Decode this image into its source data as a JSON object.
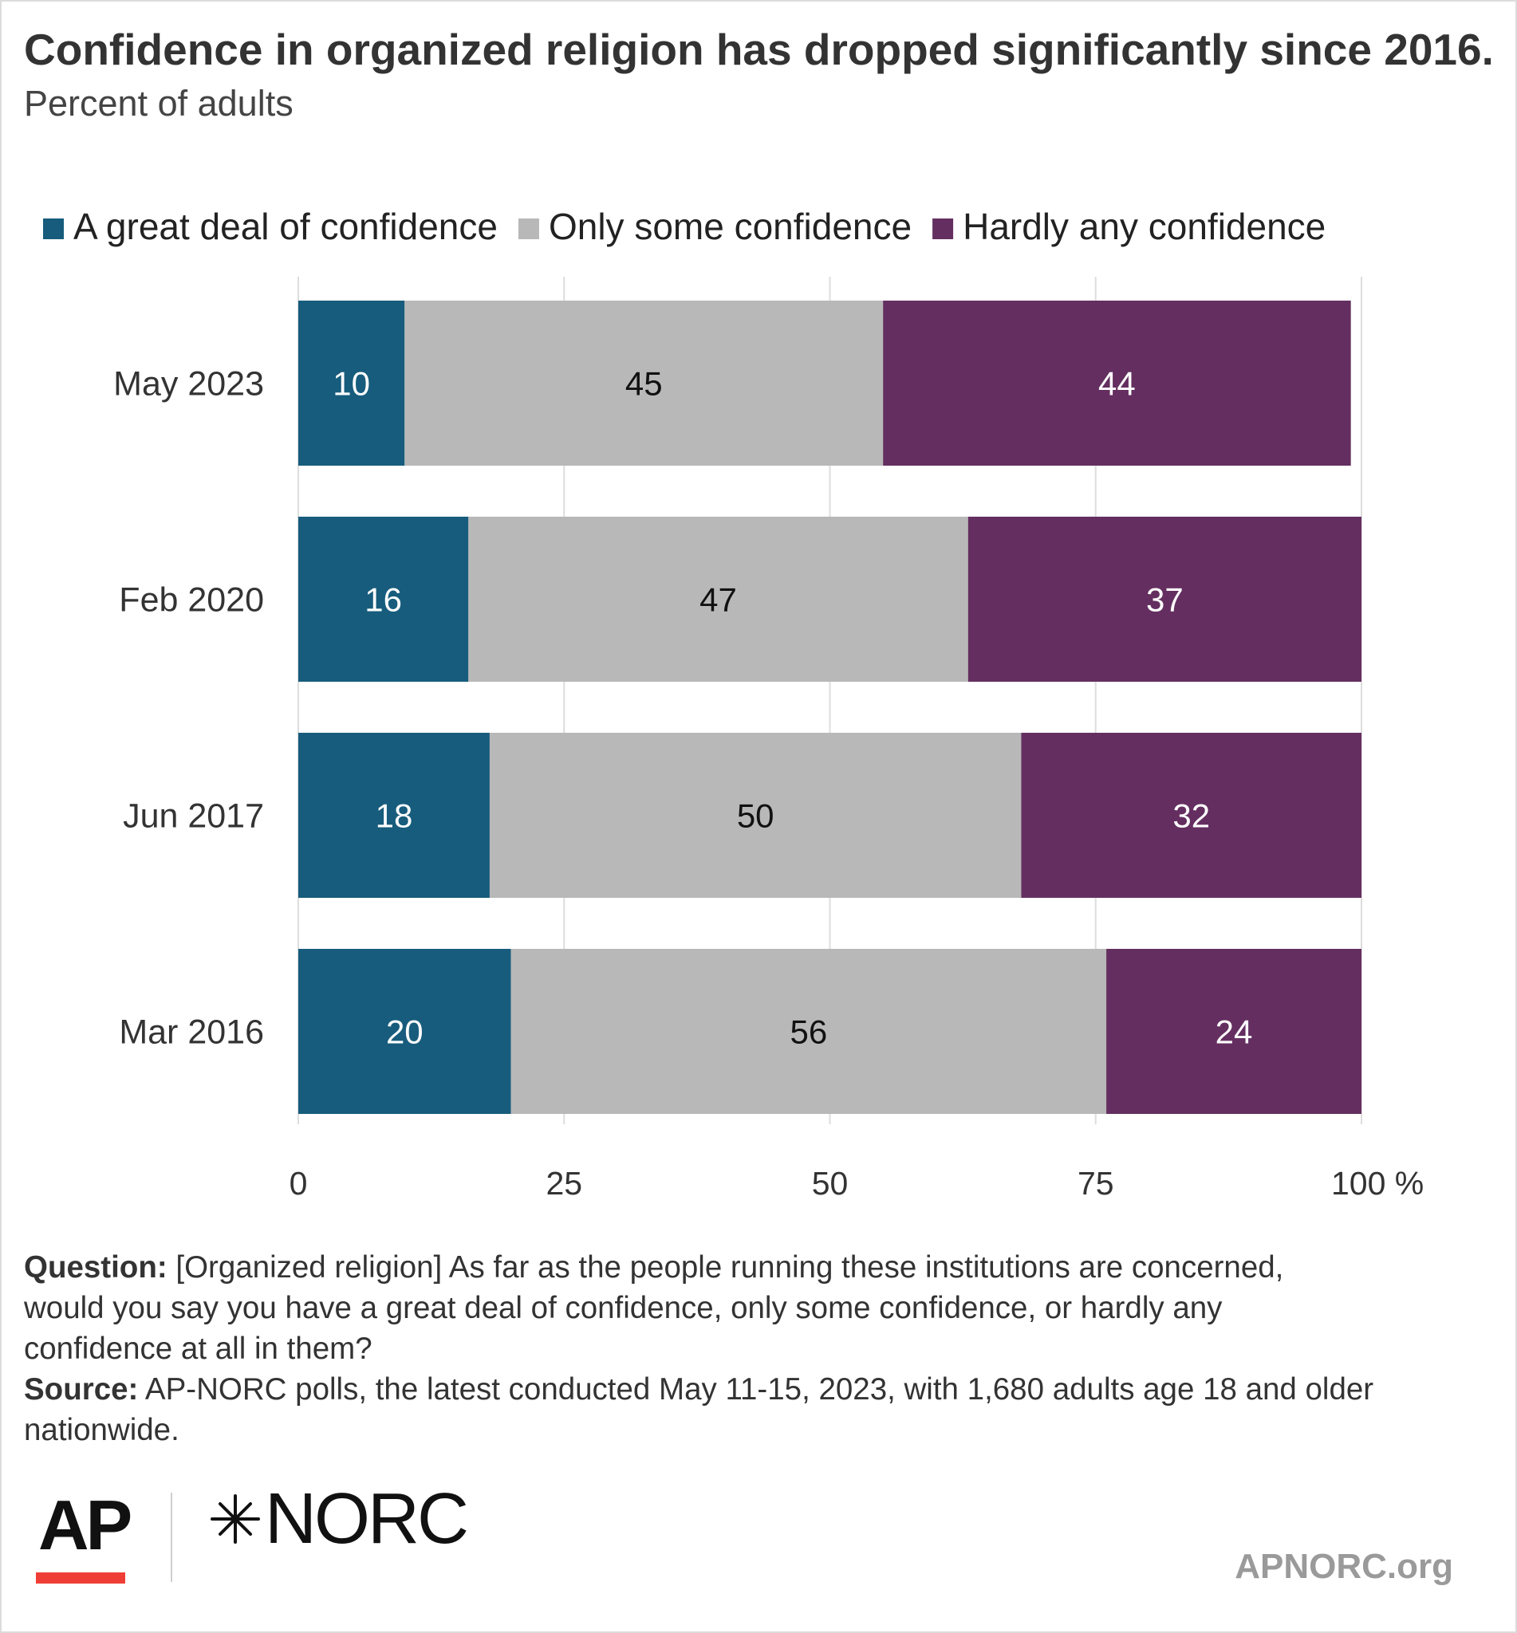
{
  "title": "Confidence in organized religion has dropped significantly since 2016.",
  "subtitle": "Percent of adults",
  "colors": {
    "great_deal": "#175c7c",
    "only_some": "#b8b8b8",
    "hardly_any": "#642f60",
    "gridline": "#dddddd",
    "ap_red": "#ef3e36"
  },
  "chart_data": {
    "type": "bar",
    "orientation": "horizontal",
    "stacked": true,
    "categories": [
      "May 2023",
      "Feb 2020",
      "Jun 2017",
      "Mar 2016"
    ],
    "series": [
      {
        "name": "A great deal of confidence",
        "values": [
          10,
          16,
          18,
          20
        ],
        "label_color": "#ffffff"
      },
      {
        "name": "Only some confidence",
        "values": [
          45,
          47,
          50,
          56
        ],
        "label_color": "#111111"
      },
      {
        "name": "Hardly any confidence",
        "values": [
          44,
          37,
          32,
          24
        ],
        "label_color": "#ffffff"
      }
    ],
    "xlim": [
      0,
      100
    ],
    "xticks": [
      {
        "value": 0,
        "label": "0"
      },
      {
        "value": 25,
        "label": "25"
      },
      {
        "value": 50,
        "label": "50"
      },
      {
        "value": 75,
        "label": "75"
      },
      {
        "value": 100,
        "label": "100 %"
      }
    ],
    "grid": true,
    "legend_position": "top-left"
  },
  "notes": {
    "question_label": "Question:",
    "question_lines": [
      "[Organized religion] As far as the people running these institutions are concerned,",
      "would you say you have  a great deal of confidence, only some confidence, or hardly any",
      "confidence at all in them?"
    ],
    "source_label": "Source:",
    "source_lines": [
      "AP-NORC polls, the latest conducted May 11-15, 2023, with 1,680 adults age 18 and older",
      "nationwide."
    ]
  },
  "branding": {
    "ap_logo": "AP",
    "norc_logo": "NORC",
    "website": "APNORC.org"
  }
}
